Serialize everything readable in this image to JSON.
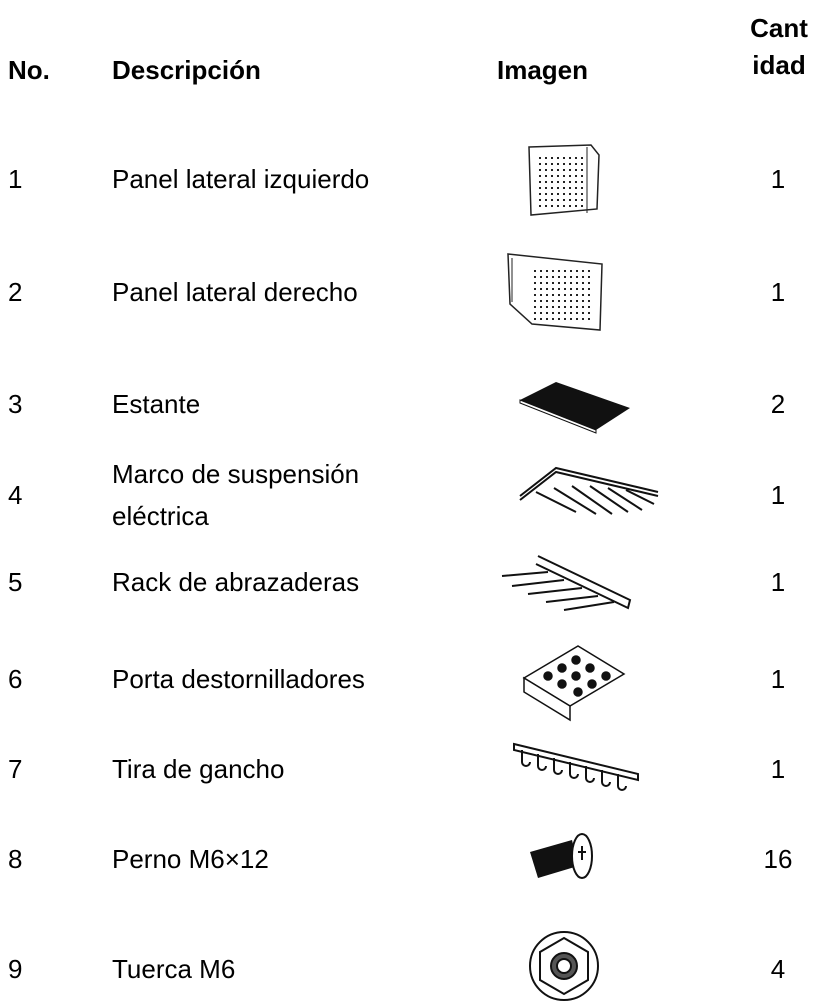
{
  "table": {
    "header": [
      "No.",
      "Descripción",
      "Imagen",
      "Cantidad"
    ],
    "rows": [
      [
        1,
        "Panel lateral izquierdo",
        1
      ],
      [
        2,
        "Panel lateral derecho",
        1
      ],
      [
        3,
        "Estante",
        2
      ],
      [
        4,
        "Marco de suspensión eléctrica",
        1
      ],
      [
        5,
        "Rack de abrazaderas",
        1
      ],
      [
        6,
        "Porta destornilladores",
        1
      ],
      [
        7,
        "Tira de gancho",
        1
      ],
      [
        8,
        "Perno M6×12",
        16
      ],
      [
        9,
        "Tuerca M6",
        4
      ]
    ]
  }
}
